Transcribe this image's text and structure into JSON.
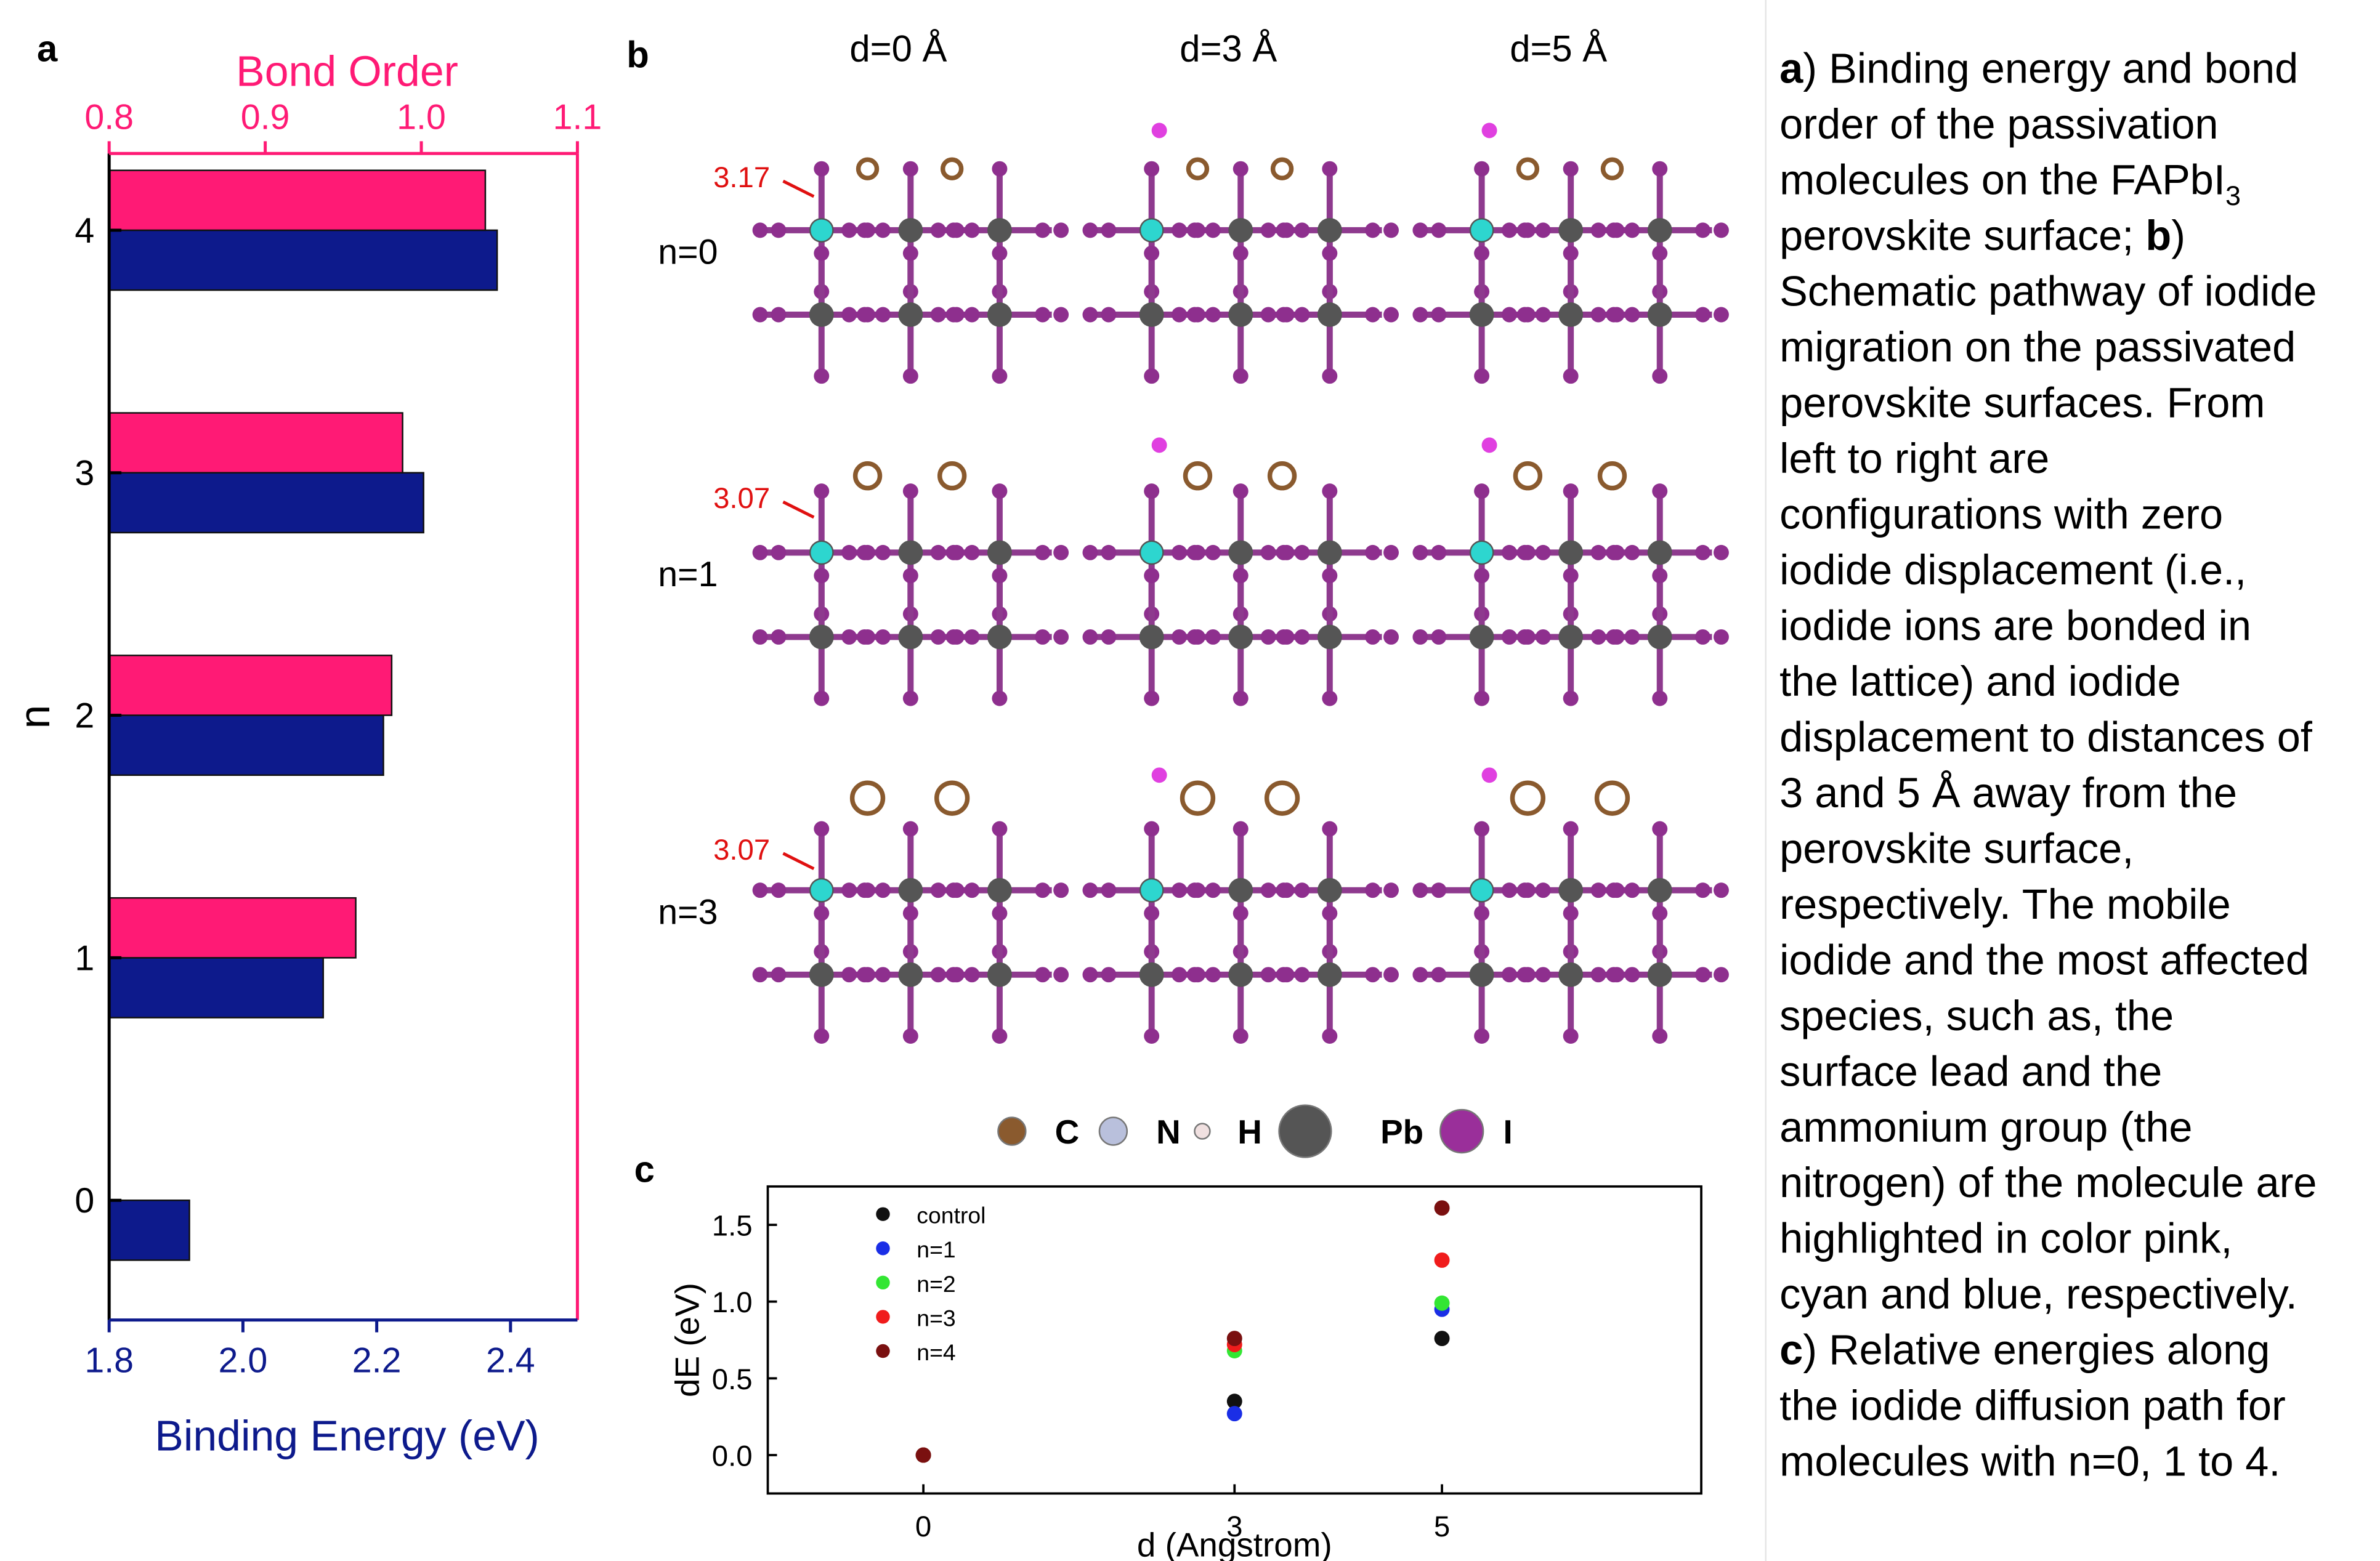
{
  "panel_labels": [
    "a",
    "b",
    "c"
  ],
  "chart_data": [
    {
      "type": "bar",
      "orientation": "horizontal",
      "ylabel": "n",
      "xlabel": "Binding Energy (eV)",
      "x2label": "Bond Order",
      "categories": [
        "0",
        "1",
        "2",
        "3",
        "4"
      ],
      "series": [
        {
          "color": "#0d1a8c",
          "values": [
            1.92,
            2.12,
            2.21,
            2.27,
            2.38
          ]
        },
        {
          "color": "#ff1a75",
          "axis": "x2",
          "values": [
            null,
            0.958,
            0.981,
            0.988,
            1.041
          ]
        }
      ],
      "xlim": [
        1.8,
        2.5
      ],
      "xticks": [
        1.8,
        {
          "value": 2.0,
          "label": "2.0"
        },
        2.2,
        2.4
      ],
      "x2lim": [
        0.8,
        1.1
      ],
      "x2ticks": [
        0.8,
        0.9,
        {
          "value": 1.0,
          "label": "1.0"
        },
        1.1
      ]
    },
    {
      "type": "scatter",
      "xlabel": "d (Angstrom)",
      "ylabel": "dE (eV)",
      "x": [
        0,
        3,
        5
      ],
      "series": [
        {
          "name": "control",
          "color": "#111111",
          "values": [
            0,
            0.35,
            0.76
          ]
        },
        {
          "name": "n=1",
          "color": "#1a2ee6",
          "values": [
            0,
            0.27,
            0.95
          ]
        },
        {
          "name": "n=2",
          "color": "#33e633",
          "values": [
            0,
            0.68,
            0.99
          ]
        },
        {
          "name": "n=3",
          "color": "#f01c1c",
          "values": [
            0,
            0.72,
            1.27
          ]
        },
        {
          "name": "n=4",
          "color": "#7a1010",
          "values": [
            0,
            0.76,
            1.61
          ]
        }
      ],
      "xlim": [
        -1.5,
        7.5
      ],
      "xticks": [
        0,
        3,
        5
      ],
      "ylim": [
        -0.25,
        1.75
      ],
      "yticks": [
        {
          "value": 0,
          "label": "0.0"
        },
        0.5,
        {
          "value": 1,
          "label": "1.0"
        },
        1.5
      ],
      "legend": "upper left"
    }
  ],
  "panel_b": {
    "column_labels": [
      "d=0 Å",
      "d=3 Å",
      "d=5 Å"
    ],
    "row_labels": [
      "n=0",
      "n=1",
      "n=3"
    ],
    "distance_labels": [
      "3.17",
      "3.07",
      "3.07"
    ],
    "legend": [
      "C",
      "N",
      "H",
      "Pb",
      "I"
    ]
  },
  "caption": [
    [
      {
        "text": "a",
        "style": "bold"
      },
      {
        "text": ") Binding energy and bond"
      }
    ],
    [
      {
        "text": "order of the passivation"
      }
    ],
    [
      {
        "text": "molecules on the FAPbI"
      },
      {
        "text": "3",
        "style": "sub"
      }
    ],
    [
      {
        "text": "perovskite surface; "
      },
      {
        "text": "b",
        "style": "bold"
      },
      {
        "text": ")"
      }
    ],
    [
      {
        "text": "Schematic pathway of iodide"
      }
    ],
    [
      {
        "text": "migration on the passivated"
      }
    ],
    [
      {
        "text": "perovskite surfaces. From"
      }
    ],
    [
      {
        "text": "left to right are"
      }
    ],
    [
      {
        "text": "configurations with zero"
      }
    ],
    [
      {
        "text": "iodide displacement (i.e.,"
      }
    ],
    [
      {
        "text": "iodide ions are bonded in"
      }
    ],
    [
      {
        "text": "the lattice) and iodide"
      }
    ],
    [
      {
        "text": "displacement to distances of"
      }
    ],
    [
      {
        "text": "3 and 5 Å away from the"
      }
    ],
    [
      {
        "text": "perovskite surface,"
      }
    ],
    [
      {
        "text": "respectively. The mobile"
      }
    ],
    [
      {
        "text": "iodide and the most affected"
      }
    ],
    [
      {
        "text": "species, such as, the"
      }
    ],
    [
      {
        "text": "surface lead and the"
      }
    ],
    [
      {
        "text": "ammonium group (the"
      }
    ],
    [
      {
        "text": "nitrogen) of the molecule are"
      }
    ],
    [
      {
        "text": "highlighted in color pink,"
      }
    ],
    [
      {
        "text": "cyan and blue, respectively."
      }
    ],
    [
      {
        "text": "c",
        "style": "bold"
      },
      {
        "text": ") Relative energies along"
      }
    ],
    [
      {
        "text": "the iodide diffusion path for"
      }
    ],
    [
      {
        "text": "molecules with n=0, 1 to 4."
      }
    ]
  ]
}
